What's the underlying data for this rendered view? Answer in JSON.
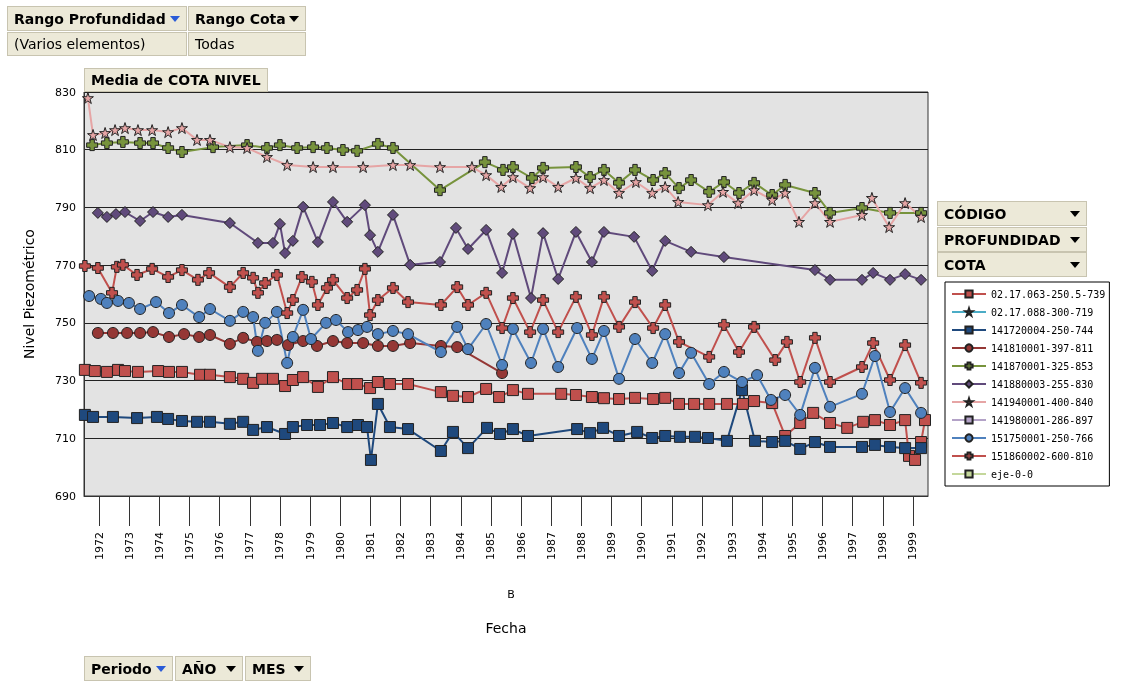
{
  "chart_data": {
    "type": "line",
    "title": "Media de COTA NIVEL",
    "xlabel": "Fecha",
    "ylabel": "Nivel Piezométrico",
    "annotations": [
      "Rango Profundidad",
      "Rango Cota",
      "(Varios elementos)",
      "Todas",
      "CÓDIGO",
      "PROFUNDIDAD",
      "COTA",
      "Periodo",
      "AÑO",
      "MES",
      "B"
    ],
    "xlim": [
      1972,
      2000
    ],
    "xticks": [
      {
        "value": 1972.5,
        "label": "1972"
      },
      {
        "value": 1973.5,
        "label": "1973"
      },
      {
        "value": 1974.5,
        "label": "1974"
      },
      {
        "value": 1975.5,
        "label": "1975"
      },
      {
        "value": 1976.5,
        "label": "1976"
      },
      {
        "value": 1977.5,
        "label": "1977"
      },
      {
        "value": 1978.5,
        "label": "1978"
      },
      {
        "value": 1979.5,
        "label": "1979"
      },
      {
        "value": 1980.5,
        "label": "1980"
      },
      {
        "value": 1981.5,
        "label": "1981"
      },
      {
        "value": 1982.5,
        "label": "1982"
      },
      {
        "value": 1983.5,
        "label": "1983"
      },
      {
        "value": 1984.5,
        "label": "1984"
      },
      {
        "value": 1985.5,
        "label": "1985"
      },
      {
        "value": 1986.5,
        "label": "1986"
      },
      {
        "value": 1987.5,
        "label": "1987"
      },
      {
        "value": 1988.5,
        "label": "1988"
      },
      {
        "value": 1989.5,
        "label": "1989"
      },
      {
        "value": 1990.5,
        "label": "1990"
      },
      {
        "value": 1991.5,
        "label": "1991"
      },
      {
        "value": 1992.5,
        "label": "1992"
      },
      {
        "value": 1993.5,
        "label": "1993"
      },
      {
        "value": 1994.5,
        "label": "1994"
      },
      {
        "value": 1995.5,
        "label": "1995"
      },
      {
        "value": 1996.5,
        "label": "1996"
      },
      {
        "value": 1997.5,
        "label": "1997"
      },
      {
        "value": 1998.5,
        "label": "1998"
      },
      {
        "value": 1999.5,
        "label": "1999"
      }
    ],
    "ylim": [
      690,
      830
    ],
    "yticks": [
      690,
      710,
      730,
      750,
      770,
      790,
      810,
      830
    ],
    "grid": "y",
    "legend": "right",
    "line_style": "solid",
    "series": [
      {
        "name": "02.17.063-250.5-739",
        "color": "#c0504d",
        "marker": "square",
        "x": [
          1972.03,
          1972.36,
          1972.76,
          1973.13,
          1973.36,
          1973.79,
          1974.46,
          1974.82,
          1975.25,
          1975.85,
          1976.18,
          1976.84,
          1977.28,
          1977.61,
          1977.91,
          1978.27,
          1978.67,
          1978.93,
          1979.27,
          1979.76,
          1980.26,
          1980.76,
          1981.06,
          1981.49,
          1981.75,
          1982.15,
          1982.75,
          1983.84,
          1984.24,
          1984.74,
          1985.34,
          1985.77,
          1986.23,
          1986.73,
          1987.83,
          1988.32,
          1988.85,
          1989.25,
          1989.75,
          1990.28,
          1990.88,
          1991.28,
          1991.74,
          1992.24,
          1992.74,
          1993.33,
          1993.86,
          1994.23,
          1994.83,
          1995.26,
          1995.76,
          1996.19,
          1996.75,
          1997.32,
          1997.85,
          1998.24,
          1998.74,
          1999.24,
          1999.37,
          1999.57,
          1999.77,
          1999.9
        ],
        "values": [
          733.7,
          733.3,
          733,
          733.7,
          733.3,
          733,
          733.3,
          733,
          733,
          732,
          732,
          731.2,
          730.6,
          729.2,
          730.6,
          730.6,
          728.1,
          730.2,
          731.2,
          727.8,
          731.2,
          728.8,
          728.8,
          727.4,
          729.5,
          728.8,
          728.8,
          726,
          724.7,
          724.3,
          727.1,
          724.3,
          726.7,
          725.4,
          725.4,
          725,
          724.3,
          723.9,
          723.6,
          724,
          723.6,
          724,
          721.9,
          721.9,
          721.9,
          721.9,
          721.9,
          722.9,
          722.2,
          710.8,
          715.3,
          718.8,
          715.3,
          713.6,
          715.7,
          716.3,
          714.6,
          716.3,
          703.9,
          702.5,
          708.7,
          716.3
        ]
      },
      {
        "name": "02.17.088-300-719",
        "color": "#4bacc6",
        "marker": "star"
      },
      {
        "name": "141720004-250-744",
        "color": "#1f497d",
        "marker": "square",
        "x": [
          1972.03,
          1972.3,
          1972.96,
          1973.76,
          1974.42,
          1974.79,
          1975.25,
          1975.75,
          1976.18,
          1976.84,
          1977.28,
          1977.61,
          1978.07,
          1978.67,
          1978.93,
          1979.4,
          1979.83,
          1980.26,
          1980.73,
          1981.09,
          1981.39,
          1981.52,
          1981.75,
          1982.15,
          1982.75,
          1983.84,
          1984.24,
          1984.74,
          1985.37,
          1985.8,
          1986.23,
          1986.73,
          1988.36,
          1988.79,
          1989.22,
          1989.75,
          1990.35,
          1990.85,
          1991.28,
          1991.77,
          1992.27,
          1992.7,
          1993.33,
          1993.83,
          1994.26,
          1994.83,
          1995.26,
          1995.76,
          1996.25,
          1996.75,
          1997.81,
          1998.24,
          1998.74,
          1999.24,
          1999.77
        ],
        "values": [
          718.1,
          717.4,
          717.4,
          717.0,
          717.4,
          716.7,
          716.0,
          715.7,
          715.7,
          715.0,
          715.7,
          712.9,
          713.9,
          711.5,
          713.9,
          714.6,
          714.6,
          715.3,
          713.9,
          714.6,
          713.9,
          702.5,
          721.9,
          713.9,
          713.2,
          705.6,
          712.2,
          706.6,
          713.6,
          711.5,
          713.2,
          710.8,
          713.2,
          711.8,
          713.6,
          710.8,
          712.2,
          710.1,
          710.8,
          710.5,
          710.5,
          710.1,
          709.1,
          726.7,
          709.1,
          708.7,
          709.1,
          706.3,
          708.7,
          707.0,
          707.0,
          707.7,
          707.0,
          706.6,
          706.6
        ]
      },
      {
        "name": "141810001-397-811",
        "color": "#953735",
        "marker": "circle",
        "x": [
          1972.46,
          1972.96,
          1973.43,
          1973.86,
          1974.29,
          1974.82,
          1975.32,
          1975.82,
          1976.18,
          1976.84,
          1977.28,
          1977.74,
          1978.07,
          1978.4,
          1978.77,
          1979.27,
          1979.73,
          1980.26,
          1980.73,
          1981.26,
          1981.75,
          1982.25,
          1982.82,
          1983.84,
          1984.38,
          1985.87
        ],
        "values": [
          746.5,
          746.5,
          746.5,
          746.5,
          746.8,
          745.1,
          746.1,
          745.1,
          745.8,
          742.7,
          744.8,
          743.4,
          743.7,
          744.1,
          742.3,
          743.7,
          742.0,
          743.7,
          743.0,
          743.0,
          742.0,
          742.0,
          743.0,
          742.0,
          741.6,
          732.6
        ]
      },
      {
        "name": "141870001-325-853",
        "color": "#77933c",
        "marker": "cross",
        "x": [
          1972.27,
          1972.76,
          1973.29,
          1973.86,
          1974.29,
          1974.79,
          1975.25,
          1976.28,
          1977.41,
          1978.07,
          1978.5,
          1979.07,
          1979.6,
          1980.06,
          1980.59,
          1981.06,
          1981.75,
          1982.25,
          1983.81,
          1985.3,
          1985.9,
          1986.23,
          1986.86,
          1987.23,
          1988.32,
          1988.79,
          1989.25,
          1989.75,
          1990.28,
          1990.88,
          1991.28,
          1991.74,
          1992.14,
          1992.74,
          1993.23,
          1993.73,
          1994.23,
          1994.83,
          1995.26,
          1996.25,
          1996.75,
          1997.81,
          1998.74,
          1999.77
        ],
        "values": [
          811.6,
          812.3,
          812.7,
          812.3,
          812.3,
          810.6,
          809.2,
          810.9,
          811.6,
          810.6,
          811.6,
          810.6,
          810.9,
          810.6,
          809.9,
          809.6,
          812.0,
          810.6,
          796.0,
          805.7,
          803.0,
          804.0,
          800.2,
          803.7,
          804.0,
          800.5,
          803.0,
          798.5,
          803.0,
          799.5,
          801.9,
          796.7,
          799.5,
          795.4,
          798.8,
          795.0,
          798.5,
          794.3,
          797.8,
          795.0,
          788.1,
          789.8,
          788.1,
          788.1
        ]
      },
      {
        "name": "141880003-255-830",
        "color": "#604a7b",
        "marker": "diamond",
        "x": [
          1972.46,
          1972.76,
          1973.06,
          1973.36,
          1973.86,
          1974.29,
          1974.79,
          1975.25,
          1976.84,
          1977.77,
          1978.27,
          1978.5,
          1978.67,
          1978.93,
          1979.27,
          1979.76,
          1980.26,
          1980.73,
          1981.32,
          1981.49,
          1981.75,
          1982.25,
          1982.82,
          1983.81,
          1984.34,
          1984.74,
          1985.34,
          1985.87,
          1986.23,
          1986.83,
          1987.23,
          1987.73,
          1988.32,
          1988.85,
          1989.25,
          1990.25,
          1990.85,
          1991.28,
          1992.14,
          1993.23,
          1996.25,
          1996.75,
          1997.81,
          1998.18,
          1998.74,
          1999.24,
          1999.77
        ],
        "values": [
          788.1,
          786.7,
          787.7,
          788.4,
          785.3,
          788.4,
          786.7,
          787.4,
          784.6,
          777.7,
          777.7,
          784.3,
          774.2,
          778.4,
          790.2,
          778.0,
          791.9,
          785.0,
          790.8,
          780.4,
          774.6,
          787.4,
          770.1,
          771.1,
          782.9,
          775.6,
          782.2,
          767.3,
          780.8,
          758.6,
          781.1,
          765.2,
          781.5,
          771.1,
          781.5,
          779.8,
          768.0,
          778.4,
          774.6,
          772.8,
          768.3,
          764.9,
          764.9,
          767.3,
          764.9,
          766.9,
          764.9
        ]
      },
      {
        "name": "141940001-400-840",
        "color": "#e6a5a5",
        "marker": "star",
        "x": [
          1972.13,
          1972.3,
          1972.7,
          1973.03,
          1973.36,
          1973.79,
          1974.26,
          1974.79,
          1975.25,
          1975.75,
          1976.18,
          1976.84,
          1977.41,
          1978.07,
          1978.74,
          1979.6,
          1980.26,
          1981.26,
          1982.25,
          1982.82,
          1983.81,
          1984.87,
          1985.34,
          1985.84,
          1986.23,
          1986.8,
          1987.23,
          1987.73,
          1988.32,
          1988.79,
          1989.25,
          1989.75,
          1990.31,
          1990.85,
          1991.28,
          1991.71,
          1992.7,
          1993.2,
          1993.7,
          1994.23,
          1994.83,
          1995.26,
          1995.72,
          1996.25,
          1996.75,
          1997.81,
          1998.14,
          1998.71,
          1999.24,
          1999.77
        ],
        "values": [
          827.9,
          815.1,
          815.8,
          816.8,
          817.5,
          816.8,
          816.8,
          816.1,
          817.5,
          813.4,
          813.4,
          810.9,
          810.6,
          807.5,
          804.7,
          804.0,
          804.0,
          804.0,
          804.7,
          804.7,
          804.0,
          804.0,
          801.2,
          797.1,
          800.5,
          796.7,
          800.5,
          797.1,
          800.2,
          796.7,
          799.5,
          795.0,
          798.8,
          795.0,
          797.1,
          791.9,
          790.8,
          795.4,
          791.5,
          796.0,
          792.6,
          795.0,
          785.0,
          791.5,
          785.0,
          787.4,
          793.3,
          783.2,
          791.5,
          786.7
        ]
      },
      {
        "name": "141980001-286-897",
        "color": "#b3a2c7",
        "marker": "square"
      },
      {
        "name": "151750001-250-766",
        "color": "#4f81bd",
        "marker": "circle",
        "x": [
          1972.17,
          1972.56,
          1972.76,
          1973.13,
          1973.49,
          1973.86,
          1974.39,
          1974.82,
          1975.25,
          1975.82,
          1976.18,
          1976.84,
          1977.28,
          1977.61,
          1977.77,
          1978.01,
          1978.4,
          1978.74,
          1978.93,
          1979.27,
          1979.53,
          1980.03,
          1980.36,
          1980.76,
          1981.09,
          1981.39,
          1981.75,
          1982.25,
          1982.75,
          1983.84,
          1984.38,
          1984.74,
          1985.34,
          1985.87,
          1986.23,
          1986.83,
          1987.23,
          1987.73,
          1988.36,
          1988.85,
          1989.25,
          1989.75,
          1990.28,
          1990.85,
          1991.28,
          1991.74,
          1992.14,
          1992.74,
          1993.23,
          1993.83,
          1994.33,
          1994.79,
          1995.26,
          1995.76,
          1996.25,
          1996.75,
          1997.81,
          1998.24,
          1998.74,
          1999.24,
          1999.77
        ],
        "values": [
          759.3,
          758.3,
          756.9,
          757.6,
          756.9,
          754.8,
          757.2,
          753.4,
          756.2,
          752.0,
          754.8,
          750.7,
          753.8,
          752.0,
          740.3,
          750.0,
          753.8,
          736.1,
          745.1,
          754.5,
          744.4,
          750.0,
          751.0,
          746.8,
          747.5,
          748.6,
          746.1,
          747.2,
          746.1,
          739.9,
          748.6,
          740.9,
          749.6,
          735.4,
          747.9,
          736.1,
          747.9,
          734.7,
          748.2,
          737.5,
          747.2,
          730.6,
          744.4,
          736.1,
          746.1,
          732.6,
          739.6,
          728.8,
          733.0,
          729.5,
          731.9,
          723.3,
          725.0,
          718.1,
          734.4,
          720.9,
          725.4,
          738.5,
          719.1,
          727.4,
          718.8
        ]
      },
      {
        "name": "151860002-600-810",
        "color": "#c0504d",
        "marker": "cross",
        "x": [
          1972.03,
          1972.46,
          1972.93,
          1973.09,
          1973.29,
          1973.76,
          1974.26,
          1974.79,
          1975.25,
          1975.78,
          1976.15,
          1976.84,
          1977.28,
          1977.61,
          1977.77,
          1978.01,
          1978.4,
          1978.74,
          1978.93,
          1979.23,
          1979.56,
          1979.76,
          1980.06,
          1980.26,
          1980.73,
          1981.06,
          1981.32,
          1981.49,
          1981.75,
          1982.25,
          1982.75,
          1983.84,
          1984.38,
          1984.74,
          1985.34,
          1985.87,
          1986.23,
          1986.8,
          1987.23,
          1987.73,
          1988.32,
          1988.85,
          1989.25,
          1989.75,
          1990.28,
          1990.88,
          1991.28,
          1991.74,
          1992.74,
          1993.23,
          1993.73,
          1994.23,
          1994.93,
          1995.32,
          1995.76,
          1996.25,
          1996.75,
          1997.81,
          1998.18,
          1998.74,
          1999.24,
          1999.77
        ],
        "values": [
          769.7,
          769.0,
          760.4,
          769.4,
          770.1,
          766.6,
          768.7,
          765.9,
          768.3,
          764.9,
          767.3,
          762.4,
          767.3,
          765.6,
          760.4,
          763.8,
          766.6,
          753.4,
          757.9,
          765.9,
          764.2,
          756.2,
          762.1,
          764.9,
          758.6,
          761.4,
          768.7,
          752.7,
          757.9,
          762.1,
          757.2,
          756.2,
          762.4,
          756.2,
          760.4,
          748.2,
          758.6,
          746.8,
          757.9,
          746.8,
          759.0,
          745.8,
          759.0,
          748.6,
          757.2,
          748.2,
          756.2,
          743.4,
          738.2,
          749.3,
          739.9,
          748.6,
          737.1,
          743.4,
          729.5,
          744.8,
          729.5,
          734.7,
          743.0,
          730.2,
          742.3,
          729.2
        ]
      },
      {
        "name": "eje-0-0",
        "color": "#c4d79b",
        "marker": "square"
      }
    ]
  }
}
